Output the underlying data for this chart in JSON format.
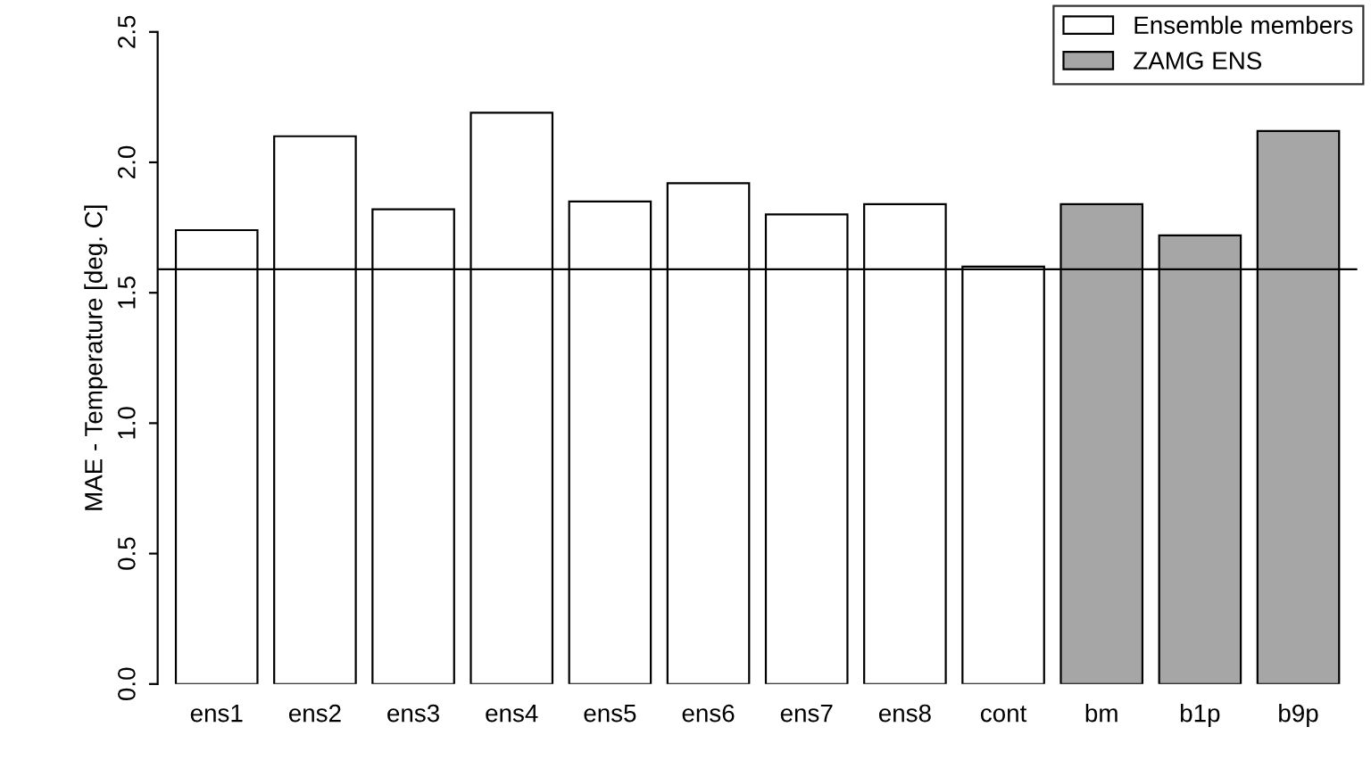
{
  "chart_data": {
    "type": "bar",
    "ylabel": "MAE - Temperature [deg. C]",
    "categories": [
      "ens1",
      "ens2",
      "ens3",
      "ens4",
      "ens5",
      "ens6",
      "ens7",
      "ens8",
      "cont",
      "bm",
      "b1p",
      "b9p"
    ],
    "series": [
      {
        "name": "Ensemble members",
        "color": "#ffffff",
        "values": [
          1.74,
          2.1,
          1.82,
          2.19,
          1.85,
          1.92,
          1.8,
          1.84,
          1.6,
          null,
          null,
          null
        ]
      },
      {
        "name": "ZAMG ENS",
        "color": "#a6a6a6",
        "values": [
          null,
          null,
          null,
          null,
          null,
          null,
          null,
          null,
          null,
          1.84,
          1.72,
          2.12
        ]
      }
    ],
    "ylim": [
      0,
      2.5
    ],
    "yticks": [
      {
        "value": 0,
        "label": "0.0"
      },
      {
        "value": 0.5,
        "label": "0.5"
      },
      {
        "value": 1,
        "label": "1.0"
      },
      {
        "value": 1.5,
        "label": "1.5"
      },
      {
        "value": 2,
        "label": "2.0"
      },
      {
        "value": 2.5,
        "label": "2.5"
      }
    ],
    "ref_lines": [
      {
        "axis": "y",
        "value": 1.59,
        "color": "#000000"
      }
    ],
    "grid": false,
    "legend": "top right"
  }
}
